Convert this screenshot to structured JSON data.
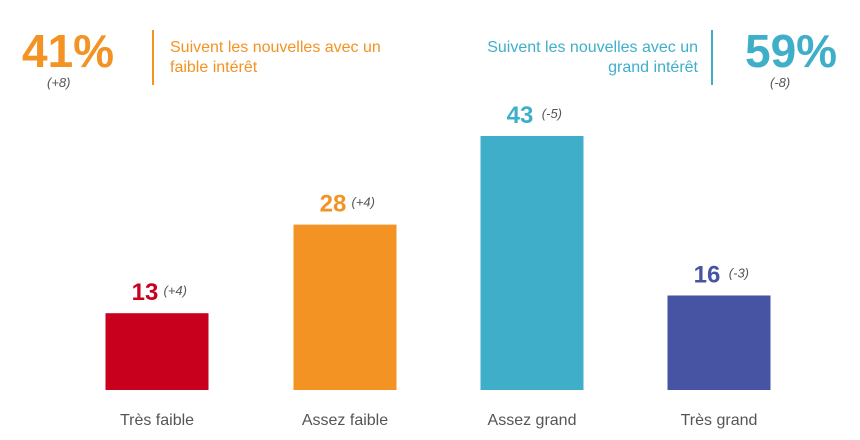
{
  "colors": {
    "orange": "#F39323",
    "teal": "#3FAFC9",
    "red": "#C8001E",
    "blue": "#4654A3",
    "grey": "#555555"
  },
  "summary": {
    "left": {
      "percent": "41%",
      "delta": "(+8)",
      "text_line1": "Suivent les nouvelles avec un",
      "text_line2": "faible intérêt"
    },
    "right": {
      "percent": "59%",
      "delta": "(-8)",
      "text_line1": "Suivent les nouvelles avec un",
      "text_line2": "grand intérêt"
    }
  },
  "chart_data": {
    "type": "bar",
    "title": "",
    "xlabel": "",
    "ylabel": "",
    "ylim": [
      0,
      43
    ],
    "categories": [
      "Très faible",
      "Assez faible",
      "Assez grand",
      "Très grand"
    ],
    "values": [
      13,
      28,
      43,
      16
    ],
    "deltas": [
      "(+4)",
      "(+4)",
      "(-5)",
      "(-3)"
    ],
    "bar_colors": [
      "#C8001E",
      "#F39323",
      "#3FAFC9",
      "#4654A3"
    ],
    "grid": false,
    "legend": "none"
  }
}
